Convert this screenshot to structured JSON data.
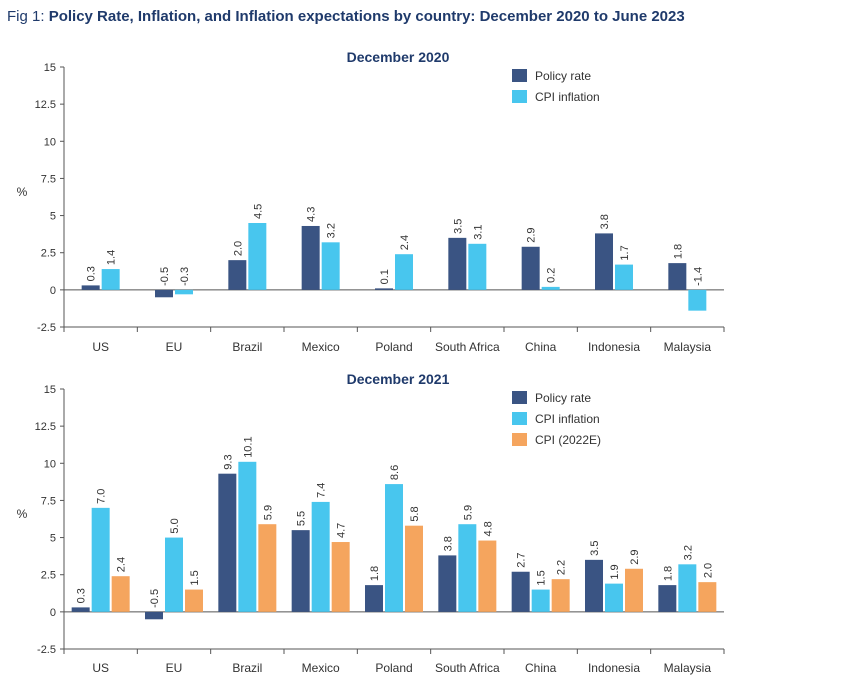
{
  "figure": {
    "prefix": "Fig 1: ",
    "title": "Policy Rate, Inflation, and Inflation expectations by country: December 2020 to June 2023"
  },
  "colors": {
    "policy": "#3a5483",
    "cpi": "#48c6ee",
    "cpi2022": "#f5a55e",
    "title": "#1f3a6b",
    "axis": "#555555"
  },
  "chart_data": [
    {
      "type": "bar",
      "title": "December 2020",
      "ylabel": "%",
      "ylim": [
        -2.5,
        15
      ],
      "yticks": [
        "15",
        "12.5",
        "10",
        "7.5",
        "5",
        "2.5",
        "0",
        "-2.5"
      ],
      "categories": [
        "US",
        "EU",
        "Brazil",
        "Mexico",
        "Poland",
        "South Africa",
        "China",
        "Indonesia",
        "Malaysia"
      ],
      "legend_position": "top-right",
      "series": [
        {
          "name": "Policy rate",
          "color": "#3a5483",
          "values": [
            0.3,
            -0.5,
            2.0,
            4.3,
            0.1,
            3.5,
            2.9,
            3.8,
            1.8
          ],
          "labels": [
            "0.3",
            "-0.5",
            "2.0",
            "4.3",
            "0.1",
            "3.5",
            "2.9",
            "3.8",
            "1.8"
          ]
        },
        {
          "name": "CPI inflation",
          "color": "#48c6ee",
          "values": [
            1.4,
            -0.3,
            4.5,
            3.2,
            2.4,
            3.1,
            0.2,
            1.7,
            -1.4
          ],
          "labels": [
            "1.4",
            "-0.3",
            "4.5",
            "3.2",
            "2.4",
            "3.1",
            "0.2",
            "1.7",
            "-1.4"
          ]
        }
      ]
    },
    {
      "type": "bar",
      "title": "December 2021",
      "ylabel": "%",
      "ylim": [
        -2.5,
        15
      ],
      "yticks": [
        "15",
        "12.5",
        "10",
        "7.5",
        "5",
        "2.5",
        "0",
        "-2.5"
      ],
      "categories": [
        "US",
        "EU",
        "Brazil",
        "Mexico",
        "Poland",
        "South Africa",
        "China",
        "Indonesia",
        "Malaysia"
      ],
      "legend_position": "top-right",
      "series": [
        {
          "name": "Policy rate",
          "color": "#3a5483",
          "values": [
            0.3,
            -0.5,
            9.3,
            5.5,
            1.8,
            3.8,
            2.7,
            3.5,
            1.8
          ],
          "labels": [
            "0.3",
            "-0.5",
            "9.3",
            "5.5",
            "1.8",
            "3.8",
            "2.7",
            "3.5",
            "1.8"
          ]
        },
        {
          "name": "CPI inflation",
          "color": "#48c6ee",
          "values": [
            7.0,
            5.0,
            10.1,
            7.4,
            8.6,
            5.9,
            1.5,
            1.9,
            3.2
          ],
          "labels": [
            "7.0",
            "5.0",
            "10.1",
            "7.4",
            "8.6",
            "5.9",
            "1.5",
            "1.9",
            "3.2"
          ]
        },
        {
          "name": "CPI (2022E)",
          "color": "#f5a55e",
          "values": [
            2.4,
            1.5,
            5.9,
            4.7,
            5.8,
            4.8,
            2.2,
            2.9,
            2.0
          ],
          "labels": [
            "2.4",
            "1.5",
            "5.9",
            "4.7",
            "5.8",
            "4.8",
            "2.2",
            "2.9",
            "2.0"
          ]
        }
      ]
    }
  ]
}
